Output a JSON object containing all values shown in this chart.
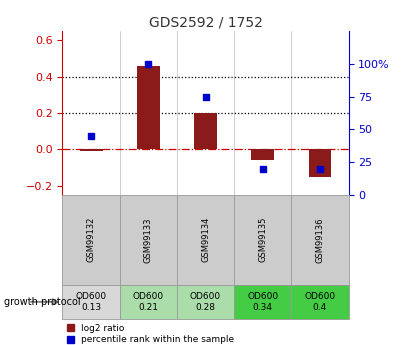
{
  "title": "GDS2592 / 1752",
  "samples": [
    "GSM99132",
    "GSM99133",
    "GSM99134",
    "GSM99135",
    "GSM99136"
  ],
  "log2_ratio": [
    -0.01,
    0.46,
    0.2,
    -0.06,
    -0.15
  ],
  "percentile_rank": [
    45,
    100,
    75,
    20,
    20
  ],
  "ylim_left": [
    -0.25,
    0.65
  ],
  "ylim_right": [
    0,
    125
  ],
  "yticks_left": [
    -0.2,
    0.0,
    0.2,
    0.4,
    0.6
  ],
  "yticks_right": [
    0,
    25,
    50,
    75,
    100
  ],
  "hlines": [
    0.2,
    0.4
  ],
  "protocol_label": "growth protocol",
  "protocol_values": [
    "OD600\n0.13",
    "OD600\n0.21",
    "OD600\n0.28",
    "OD600\n0.34",
    "OD600\n0.4"
  ],
  "protocol_colors": [
    "#d8d8d8",
    "#aaddaa",
    "#aaddaa",
    "#44cc44",
    "#44cc44"
  ],
  "bar_color": "#8b1a1a",
  "dot_color": "#0000cc",
  "zero_line_color": "#cc0000",
  "background_color": "#ffffff",
  "left_axis_color": "#cc0000",
  "right_axis_color": "#0000cc",
  "gsm_bg_color": "#cccccc",
  "gsm_edge_color": "#999999",
  "xlim": [
    -0.5,
    4.5
  ],
  "bar_width": 0.4
}
